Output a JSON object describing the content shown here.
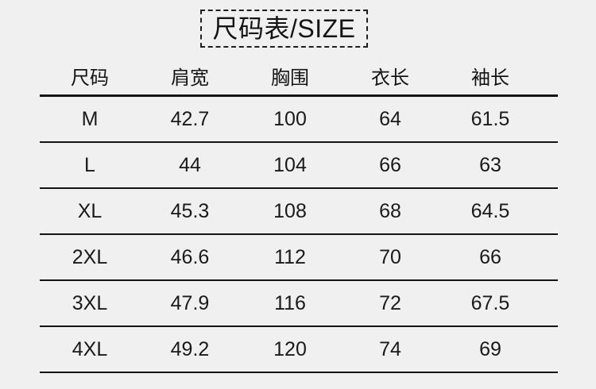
{
  "page": {
    "background_color": "#f0f0f0",
    "text_color": "#1a1a1a",
    "line_color": "#141414"
  },
  "title": "尺码表/SIZE",
  "chart_data": {
    "type": "table",
    "title": "尺码表/SIZE",
    "columns": [
      "尺码",
      "肩宽",
      "胸围",
      "衣长",
      "袖长"
    ],
    "rows": [
      [
        "M",
        "42.7",
        "100",
        "64",
        "61.5"
      ],
      [
        "L",
        "44",
        "104",
        "66",
        "63"
      ],
      [
        "XL",
        "45.3",
        "108",
        "68",
        "64.5"
      ],
      [
        "2XL",
        "46.6",
        "112",
        "70",
        "66"
      ],
      [
        "3XL",
        "47.9",
        "116",
        "72",
        "67.5"
      ],
      [
        "4XL",
        "49.2",
        "120",
        "74",
        "69"
      ]
    ]
  }
}
